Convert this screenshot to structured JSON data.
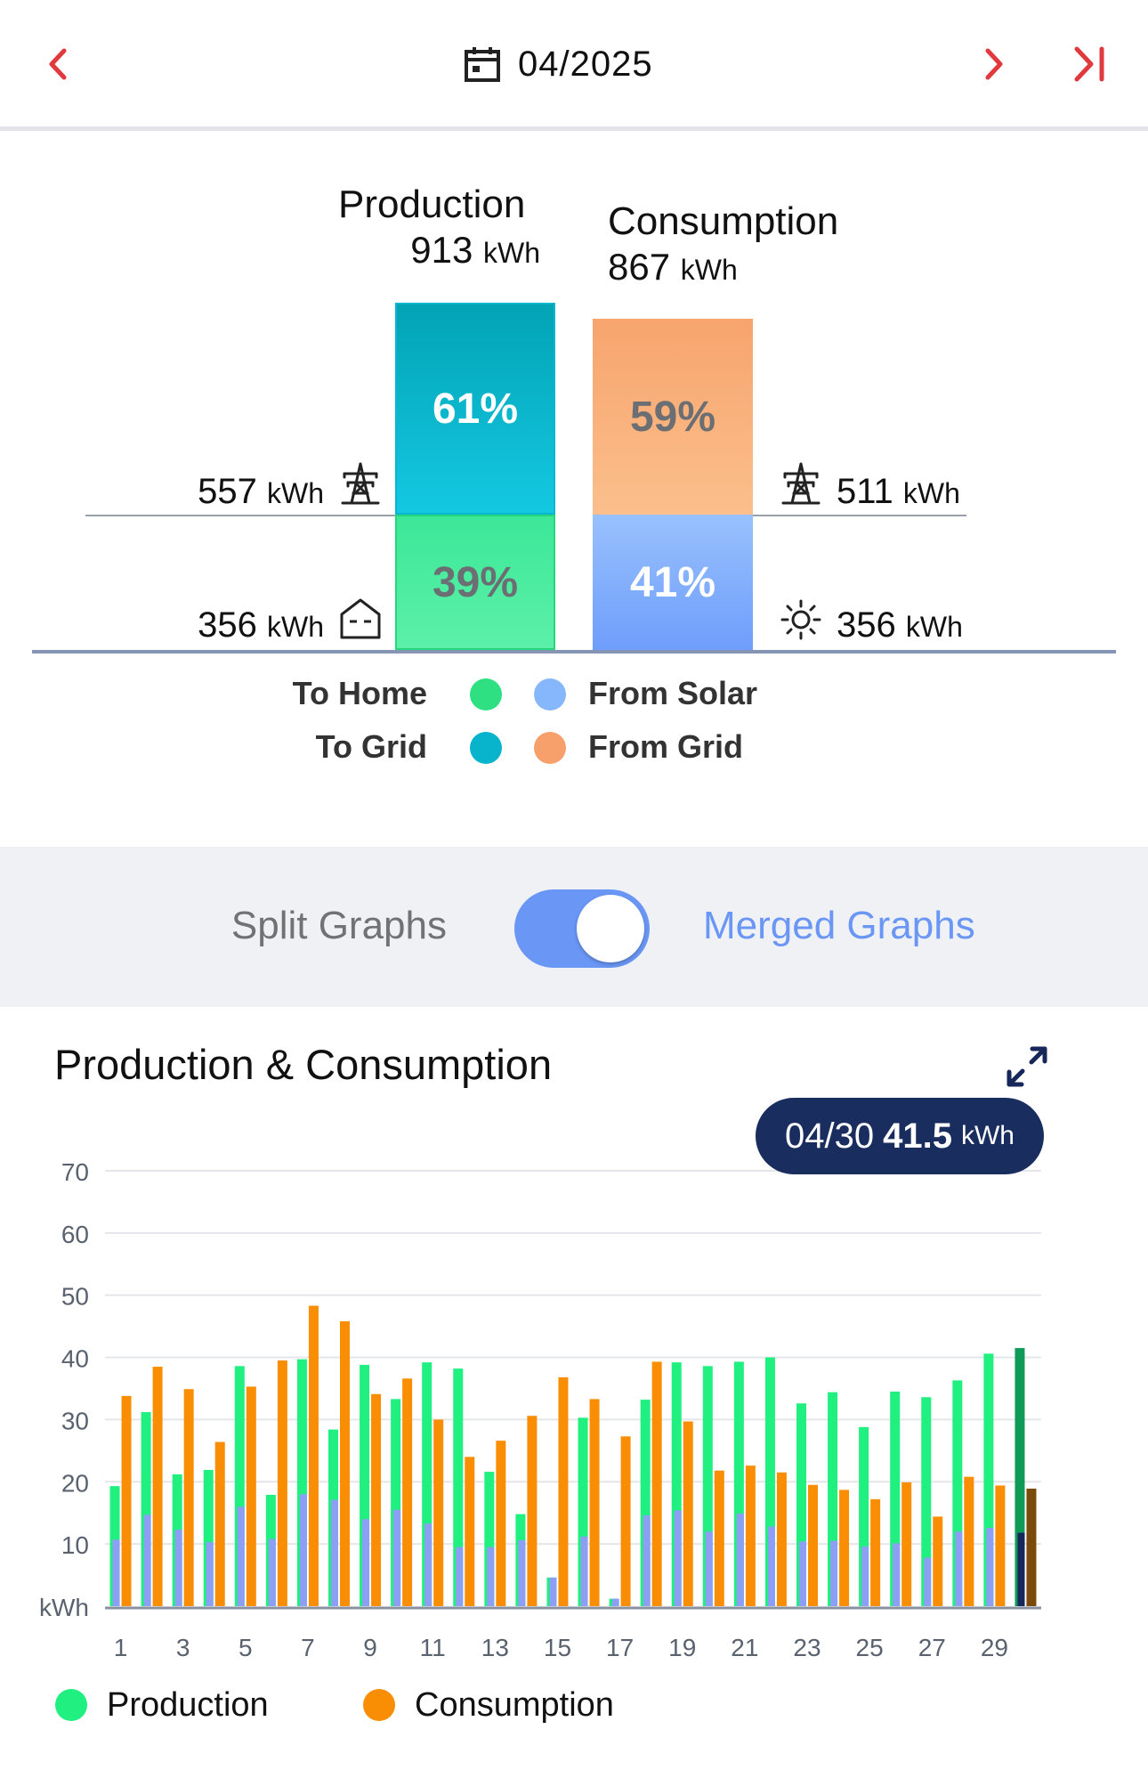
{
  "header": {
    "date": "04/2025",
    "icons": {
      "prev": "chevron-left-icon",
      "calendar": "calendar-icon",
      "next": "chevron-right-icon",
      "last": "skip-to-end-icon"
    },
    "accent": "#e0393e"
  },
  "summary": {
    "production": {
      "title": "Production",
      "value": "913",
      "unit": "kWh"
    },
    "consumption": {
      "title": "Consumption",
      "value": "867",
      "unit": "kWh"
    },
    "production_bar": {
      "to_grid_pct": "61%",
      "to_home_pct": "39%",
      "to_grid_fraction": 0.61,
      "to_home_fraction": 0.39
    },
    "consumption_bar": {
      "from_grid_pct": "59%",
      "from_solar_pct": "41%",
      "from_grid_fraction": 0.59,
      "from_solar_fraction": 0.41
    },
    "left": {
      "grid": {
        "value": "557",
        "unit": "kWh",
        "icon": "power-tower-icon"
      },
      "home": {
        "value": "356",
        "unit": "kWh",
        "icon": "house-icon"
      }
    },
    "right": {
      "grid": {
        "value": "511",
        "unit": "kWh",
        "icon": "power-tower-icon"
      },
      "solar": {
        "value": "356",
        "unit": "kWh",
        "icon": "sun-icon"
      }
    },
    "legend": {
      "to_home": "To Home",
      "to_grid": "To Grid",
      "from_solar": "From Solar",
      "from_grid": "From Grid"
    },
    "colors": {
      "to_home": "#2ee081",
      "to_grid": "#08b4cc",
      "from_solar": "#86b6fb",
      "from_grid": "#f7a06b"
    }
  },
  "toggle": {
    "split_label": "Split Graphs",
    "merged_label": "Merged Graphs",
    "state": "merged"
  },
  "chart": {
    "title": "Production & Consumption",
    "expand_icon": "expand-icon",
    "tooltip": {
      "date": "04/30",
      "value": "41.5",
      "unit": "kWh"
    },
    "legend": {
      "production": "Production",
      "consumption": "Consumption"
    },
    "colors": {
      "production": "#1ff07f",
      "consumption": "#f98e04",
      "solar_use": "#8c9ff5"
    }
  },
  "chart_data": {
    "type": "bar",
    "x": [
      1,
      2,
      3,
      4,
      5,
      6,
      7,
      8,
      9,
      10,
      11,
      12,
      13,
      14,
      15,
      16,
      17,
      18,
      19,
      20,
      21,
      22,
      23,
      24,
      25,
      26,
      27,
      28,
      29,
      30
    ],
    "x_tick_labels": [
      "1",
      "3",
      "5",
      "7",
      "9",
      "11",
      "13",
      "15",
      "17",
      "19",
      "21",
      "23",
      "25",
      "27",
      "29"
    ],
    "ylabel": "kWh",
    "ylim": [
      0,
      70
    ],
    "yticks": [
      10,
      20,
      30,
      40,
      50,
      60,
      70
    ],
    "grid": true,
    "legend_position": "bottom",
    "highlighted_x": 30,
    "series": [
      {
        "name": "Production",
        "values": [
          19.3,
          31.2,
          21.2,
          21.9,
          38.6,
          17.9,
          39.7,
          28.4,
          38.8,
          33.3,
          39.2,
          38.2,
          21.6,
          14.8,
          4.6,
          30.3,
          1.2,
          33.2,
          39.2,
          38.6,
          39.3,
          40.0,
          32.6,
          34.4,
          28.8,
          34.5,
          33.6,
          36.3,
          40.6,
          41.5
        ]
      },
      {
        "name": "Consumption",
        "values": [
          33.8,
          38.5,
          34.9,
          26.4,
          35.3,
          39.5,
          48.3,
          45.8,
          34.1,
          36.6,
          30.0,
          24.0,
          26.6,
          30.6,
          36.8,
          33.3,
          27.3,
          39.3,
          29.7,
          21.8,
          22.6,
          21.5,
          19.5,
          18.7,
          17.2,
          19.9,
          14.4,
          20.8,
          19.4,
          18.9
        ]
      },
      {
        "values": [
          10.7,
          14.7,
          12.3,
          10.3,
          16.0,
          10.8,
          18.0,
          17.1,
          14.0,
          15.5,
          13.3,
          9.5,
          9.5,
          10.6,
          4.6,
          11.2,
          1.2,
          14.6,
          15.4,
          12.0,
          14.9,
          12.8,
          10.4,
          10.5,
          9.6,
          10.1,
          7.8,
          12.0,
          12.6,
          11.8
        ]
      }
    ]
  }
}
